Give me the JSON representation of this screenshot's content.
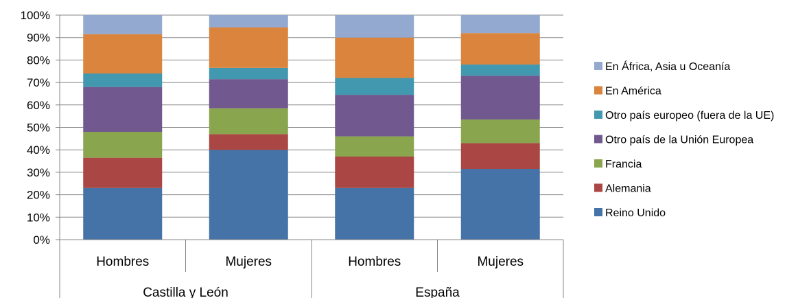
{
  "chart_data": {
    "type": "bar",
    "stacked": true,
    "percent": true,
    "groups": [
      {
        "label": "Castilla y León",
        "categories": [
          "Hombres",
          "Mujeres"
        ]
      },
      {
        "label": "España",
        "categories": [
          "Hombres",
          "Mujeres"
        ]
      }
    ],
    "categories": [
      "Hombres",
      "Mujeres",
      "Hombres",
      "Mujeres"
    ],
    "ylim": [
      0,
      100
    ],
    "yticks": [
      "0%",
      "10%",
      "20%",
      "30%",
      "40%",
      "50%",
      "60%",
      "70%",
      "80%",
      "90%",
      "100%"
    ],
    "grid": true,
    "legend_position": "right",
    "series": [
      {
        "name": "Reino Unido",
        "color": "#4572A7",
        "values": [
          23,
          40,
          23,
          31.5
        ]
      },
      {
        "name": "Alemania",
        "color": "#AA4643",
        "values": [
          13.5,
          7,
          14,
          11.5
        ]
      },
      {
        "name": "Francia",
        "color": "#89A54E",
        "values": [
          11.5,
          11.5,
          9,
          10.5
        ]
      },
      {
        "name": "Otro país de la Unión Europea",
        "color": "#71588F",
        "values": [
          20,
          13,
          18.5,
          19.5
        ]
      },
      {
        "name": "Otro país europeo (fuera de la UE)",
        "color": "#4198AF",
        "values": [
          6,
          5,
          7.5,
          5
        ]
      },
      {
        "name": "En América",
        "color": "#DB843D",
        "values": [
          17.5,
          18,
          18,
          14
        ]
      },
      {
        "name": "En África, Asia u Oceanía",
        "color": "#93A9CF",
        "values": [
          8.5,
          5.5,
          10,
          8
        ]
      }
    ]
  }
}
